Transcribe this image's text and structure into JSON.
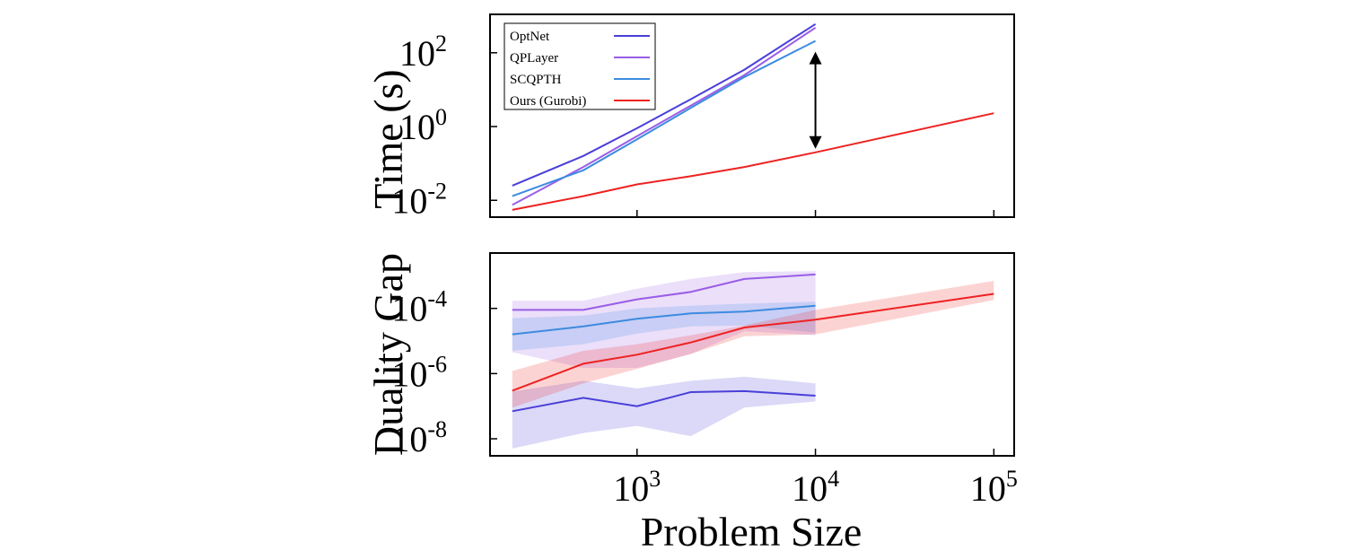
{
  "chart_data": [
    {
      "type": "line",
      "ylabel": "Time (s)",
      "xlabel": "",
      "xscale": "log",
      "yscale": "log",
      "xlim": [
        150,
        130000
      ],
      "ylim": [
        0.0035,
        1100
      ],
      "xticks": [
        {
          "base": "10",
          "exp": "3",
          "value": 1000
        },
        {
          "base": "10",
          "exp": "4",
          "value": 10000
        },
        {
          "base": "10",
          "exp": "5",
          "value": 100000
        }
      ],
      "xtick_labels_shown": false,
      "yticks": [
        {
          "base": "10",
          "exp": "-2",
          "value": 0.01
        },
        {
          "base": "10",
          "exp": "0",
          "value": 1
        },
        {
          "base": "10",
          "exp": "2",
          "value": 100
        }
      ],
      "legend_position": "top-left",
      "annotation": "double-headed arrow at x=10^4 between SCQPTH and Ours (Gurobi)",
      "series": [
        {
          "name": "OptNet",
          "color": "#4b3fd9",
          "x": [
            200,
            500,
            1000,
            2000,
            4000,
            10000
          ],
          "y": [
            0.025,
            0.16,
            0.9,
            5.5,
            35,
            600
          ]
        },
        {
          "name": "QPLayer",
          "color": "#9a5de6",
          "x": [
            200,
            500,
            1000,
            2000,
            4000,
            10000
          ],
          "y": [
            0.0075,
            0.08,
            0.55,
            3.7,
            25,
            480
          ]
        },
        {
          "name": "SCQPTH",
          "color": "#3d8be0",
          "x": [
            200,
            500,
            1000,
            2000,
            4000,
            10000
          ],
          "y": [
            0.013,
            0.065,
            0.45,
            3.2,
            22,
            210
          ]
        },
        {
          "name": "Ours (Gurobi)",
          "color": "#ee2222",
          "x": [
            200,
            500,
            1000,
            2000,
            4000,
            10000,
            100000
          ],
          "y": [
            0.0055,
            0.013,
            0.027,
            0.045,
            0.08,
            0.2,
            2.3
          ]
        }
      ]
    },
    {
      "type": "line",
      "ylabel": "Duality Gap",
      "xlabel": "Problem Size",
      "xscale": "log",
      "yscale": "log",
      "xlim": [
        150,
        130000
      ],
      "ylim": [
        3e-09,
        0.005
      ],
      "xticks": [
        {
          "base": "10",
          "exp": "3",
          "value": 1000
        },
        {
          "base": "10",
          "exp": "4",
          "value": 10000
        },
        {
          "base": "10",
          "exp": "5",
          "value": 100000
        }
      ],
      "yticks": [
        {
          "base": "10",
          "exp": "-8",
          "value": 1e-08
        },
        {
          "base": "10",
          "exp": "-6",
          "value": 1e-06
        },
        {
          "base": "10",
          "exp": "-4",
          "value": 0.0001
        }
      ],
      "series": [
        {
          "name": "OptNet",
          "color": "#4b3fd9",
          "x": [
            200,
            500,
            1000,
            2000,
            4000,
            10000
          ],
          "y": [
            7e-08,
            1.8e-07,
            1e-07,
            2.7e-07,
            2.9e-07,
            2.1e-07
          ],
          "band_low": [
            5e-09,
            1.5e-08,
            2.5e-08,
            1.2e-08,
            9e-08,
            1.4e-07
          ],
          "band_high": [
            2.8e-07,
            6e-07,
            3.5e-07,
            6e-07,
            8e-07,
            5e-07
          ]
        },
        {
          "name": "QPLayer",
          "color": "#9a5de6",
          "x": [
            200,
            500,
            1000,
            2000,
            4000,
            10000
          ],
          "y": [
            9e-05,
            9e-05,
            0.00019,
            0.00032,
            0.0008,
            0.0011
          ],
          "band_low": [
            4.5e-06,
            1.5e-06,
            1.5e-06,
            4e-06,
            2e-05,
            1.5e-05
          ],
          "band_high": [
            0.00017,
            0.00017,
            0.0004,
            0.0008,
            0.0013,
            0.0014
          ]
        },
        {
          "name": "SCQPTH",
          "color": "#3d8be0",
          "x": [
            200,
            500,
            1000,
            2000,
            4000,
            10000
          ],
          "y": [
            1.6e-05,
            2.8e-05,
            4.8e-05,
            7e-05,
            8e-05,
            0.00012
          ],
          "band_low": [
            5e-06,
            8e-06,
            1.7e-05,
            2.8e-05,
            3e-05,
            1.8e-05
          ],
          "band_high": [
            5e-05,
            6e-05,
            0.0001,
            0.00012,
            0.00014,
            0.00016
          ]
        },
        {
          "name": "Ours (Gurobi)",
          "color": "#ee2222",
          "x": [
            200,
            500,
            1000,
            2000,
            4000,
            10000,
            100000
          ],
          "y": [
            3e-07,
            2e-06,
            3.8e-06,
            9e-06,
            2.6e-05,
            4.5e-05,
            0.00028
          ],
          "band_low": [
            9e-08,
            5e-07,
            1.4e-06,
            4e-06,
            1.4e-05,
            1.6e-05,
            0.00018
          ],
          "band_high": [
            1.2e-06,
            5e-06,
            8e-06,
            1.5e-05,
            3e-05,
            9e-05,
            0.0007
          ]
        }
      ]
    }
  ]
}
